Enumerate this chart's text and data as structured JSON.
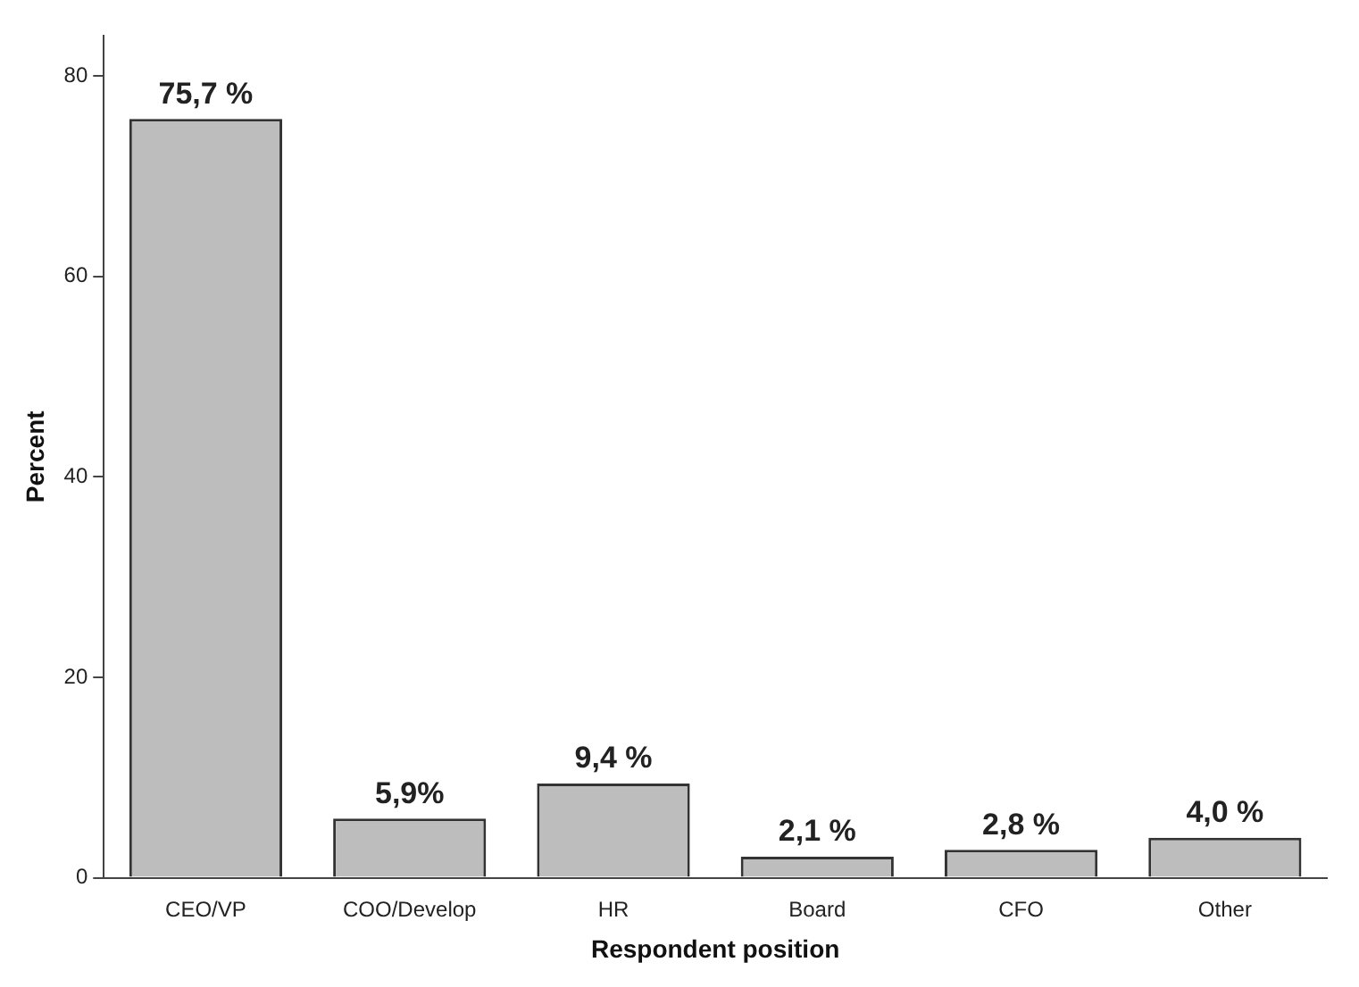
{
  "chart_data": {
    "type": "bar",
    "xlabel": "Respondent position",
    "ylabel": "Percent",
    "categories": [
      "CEO/VP",
      "COO/Develop",
      "HR",
      "Board",
      "CFO",
      "Other"
    ],
    "values": [
      75.7,
      5.9,
      9.4,
      2.1,
      2.8,
      4.0
    ],
    "value_labels": [
      "75,7 %",
      "5,9%",
      "9,4 %",
      "2,1 %",
      "2,8 %",
      "4,0 %"
    ],
    "color": "#bdbdbd",
    "ylim": [
      0,
      84
    ],
    "yticks": [
      0,
      20,
      40,
      60,
      80
    ],
    "grid": false,
    "legend": false
  }
}
